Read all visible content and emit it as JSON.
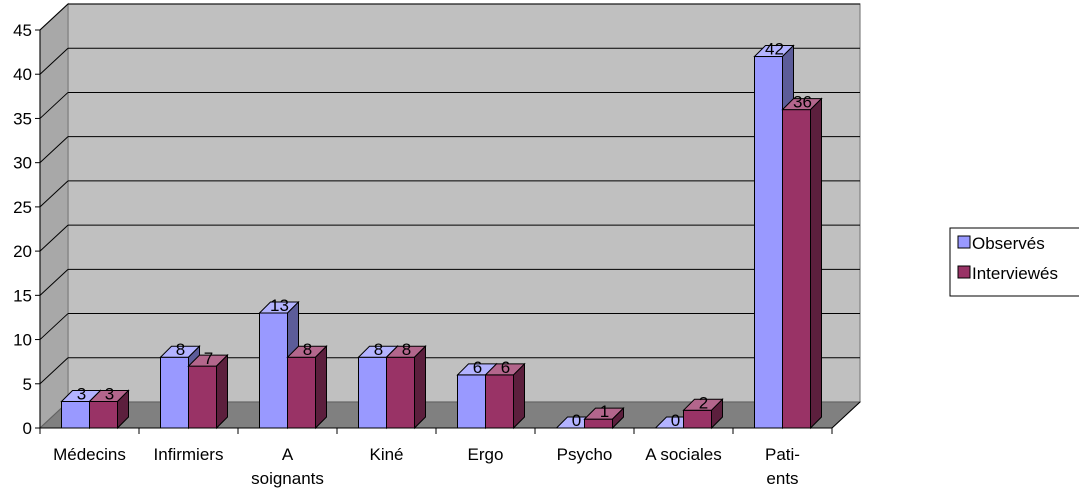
{
  "chart_data": {
    "type": "bar",
    "categories": [
      "Médecins",
      "Infirmiers",
      "A soignants",
      "Kiné",
      "Ergo",
      "Psycho",
      "A sociales",
      "Pati- ents"
    ],
    "category_lines": [
      [
        "Médecins"
      ],
      [
        "Infirmiers"
      ],
      [
        "A",
        "soignants"
      ],
      [
        "Kiné"
      ],
      [
        "Ergo"
      ],
      [
        "Psycho"
      ],
      [
        "A sociales"
      ],
      [
        "Pati-",
        "ents"
      ]
    ],
    "series": [
      {
        "name": "Observés",
        "values": [
          3,
          8,
          13,
          8,
          6,
          0,
          0,
          42
        ]
      },
      {
        "name": "Interviewés",
        "values": [
          3,
          7,
          8,
          8,
          6,
          1,
          2,
          36
        ]
      }
    ],
    "ylim": [
      0,
      45
    ],
    "yticks": [
      0,
      5,
      10,
      15,
      20,
      25,
      30,
      35,
      40,
      45
    ],
    "grid": true,
    "legend": "right",
    "data_labels": true,
    "colors": {
      "series_front": [
        "#9999FF",
        "#993366"
      ],
      "series_top": [
        "#B3B3FF",
        "#B3668C"
      ],
      "series_side": [
        "#5C5C99",
        "#5C1F3D"
      ],
      "plot_wall": "#C0C0C0",
      "floor": "#808080"
    }
  }
}
